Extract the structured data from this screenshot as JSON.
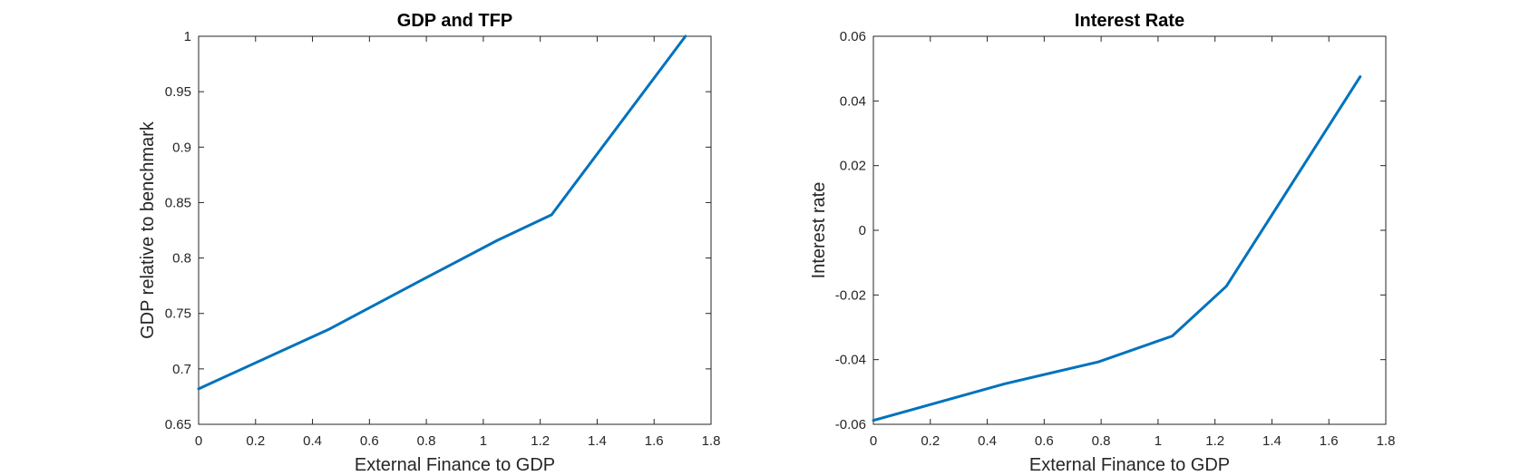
{
  "chart_data": [
    {
      "type": "line",
      "title": "GDP and TFP",
      "xlabel": "External Finance to GDP",
      "ylabel": "GDP relative to benchmark",
      "xlim": [
        0,
        1.8
      ],
      "ylim": [
        0.65,
        1
      ],
      "xticks": [
        "0",
        "0.2",
        "0.4",
        "0.6",
        "0.8",
        "1",
        "1.2",
        "1.4",
        "1.6",
        "1.8"
      ],
      "xtick_values": [
        0,
        0.2,
        0.4,
        0.6,
        0.8,
        1.0,
        1.2,
        1.4,
        1.6,
        1.8
      ],
      "yticks": [
        "0.65",
        "0.7",
        "0.75",
        "0.8",
        "0.85",
        "0.9",
        "0.95",
        "1"
      ],
      "ytick_values": [
        0.65,
        0.7,
        0.75,
        0.8,
        0.85,
        0.9,
        0.95,
        1.0
      ],
      "grid": false,
      "legend": null,
      "series": [
        {
          "color": "#0072BD",
          "x": [
            0,
            0.46,
            0.79,
            1.05,
            1.24,
            1.71
          ],
          "y": [
            0.682,
            0.736,
            0.781,
            0.816,
            0.839,
            1.0
          ]
        }
      ]
    },
    {
      "type": "line",
      "title": "Interest Rate",
      "xlabel": "External Finance to GDP",
      "ylabel": "Interest rate",
      "xlim": [
        0,
        1.8
      ],
      "ylim": [
        -0.06,
        0.06
      ],
      "xticks": [
        "0",
        "0.2",
        "0.4",
        "0.6",
        "0.8",
        "1",
        "1.2",
        "1.4",
        "1.6",
        "1.8"
      ],
      "xtick_values": [
        0,
        0.2,
        0.4,
        0.6,
        0.8,
        1.0,
        1.2,
        1.4,
        1.6,
        1.8
      ],
      "yticks": [
        "-0.06",
        "-0.04",
        "-0.02",
        "0",
        "0.02",
        "0.04",
        "0.06"
      ],
      "ytick_values": [
        -0.06,
        -0.04,
        -0.02,
        0,
        0.02,
        0.04,
        0.06
      ],
      "grid": false,
      "legend": null,
      "series": [
        {
          "color": "#0072BD",
          "x": [
            0,
            0.46,
            0.79,
            1.05,
            1.24,
            1.71
          ],
          "y": [
            -0.0588,
            -0.0475,
            -0.0407,
            -0.0327,
            -0.0173,
            0.0475
          ]
        }
      ]
    }
  ]
}
